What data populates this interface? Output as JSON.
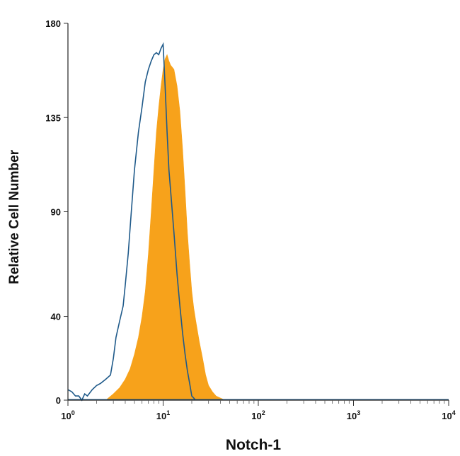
{
  "chart_data": {
    "type": "area",
    "title": "",
    "xlabel": "Notch-1",
    "ylabel": "Relative Cell Number",
    "x_scale": "log",
    "xlim": [
      1,
      10000
    ],
    "ylim": [
      0,
      180
    ],
    "x_ticks": [
      {
        "value": 1,
        "base": "10",
        "exp": "0"
      },
      {
        "value": 10,
        "base": "10",
        "exp": "1"
      },
      {
        "value": 100,
        "base": "10",
        "exp": "2"
      },
      {
        "value": 1000,
        "base": "10",
        "exp": "3"
      },
      {
        "value": 10000,
        "base": "10",
        "exp": "4"
      }
    ],
    "y_ticks": [
      {
        "value": 0,
        "label": "0"
      },
      {
        "value": 40,
        "label": "40"
      },
      {
        "value": 90,
        "label": "90"
      },
      {
        "value": 135,
        "label": "135"
      },
      {
        "value": 180,
        "label": "180"
      }
    ],
    "grid": false,
    "legend": "none",
    "series": [
      {
        "style": "filled",
        "color": "#F7A21B",
        "x": [
          2.5,
          3.0,
          3.5,
          4.0,
          4.5,
          5.0,
          5.5,
          6.0,
          6.5,
          7.0,
          7.5,
          8.0,
          8.5,
          9.0,
          9.5,
          10.0,
          10.5,
          11.0,
          11.5,
          12.0,
          13.0,
          14.0,
          15.0,
          16.0,
          17.0,
          18.0,
          19.0,
          20.0,
          21.0,
          22.0,
          24.0,
          26.0,
          28.0,
          30.0,
          33.0,
          36.0,
          40.0,
          45.0
        ],
        "y": [
          0,
          3,
          6,
          10,
          15,
          22,
          30,
          40,
          52,
          70,
          90,
          110,
          128,
          140,
          150,
          158,
          163,
          165,
          162,
          160,
          158,
          150,
          138,
          120,
          100,
          80,
          65,
          52,
          44,
          38,
          28,
          20,
          12,
          7,
          4,
          2,
          1,
          0
        ]
      },
      {
        "style": "outline",
        "color": "#1F5A8A",
        "x": [
          1.0,
          1.1,
          1.2,
          1.3,
          1.4,
          1.5,
          1.6,
          1.8,
          2.0,
          2.2,
          2.5,
          2.8,
          3.0,
          3.2,
          3.5,
          3.8,
          4.0,
          4.3,
          4.6,
          5.0,
          5.5,
          6.0,
          6.5,
          7.0,
          7.5,
          8.0,
          8.5,
          9.0,
          9.5,
          10.0,
          10.5,
          11.0,
          11.5,
          12.0,
          13.0,
          14.0,
          15.0,
          16.0,
          17.0,
          18.0,
          19.0,
          20.0,
          22.0
        ],
        "y": [
          5,
          4,
          2,
          2,
          0,
          3,
          2,
          5,
          7,
          8,
          10,
          12,
          20,
          30,
          38,
          45,
          55,
          70,
          88,
          110,
          128,
          140,
          152,
          158,
          162,
          165,
          166,
          165,
          168,
          170,
          150,
          128,
          110,
          100,
          80,
          60,
          45,
          32,
          22,
          14,
          8,
          2,
          0
        ]
      }
    ]
  }
}
